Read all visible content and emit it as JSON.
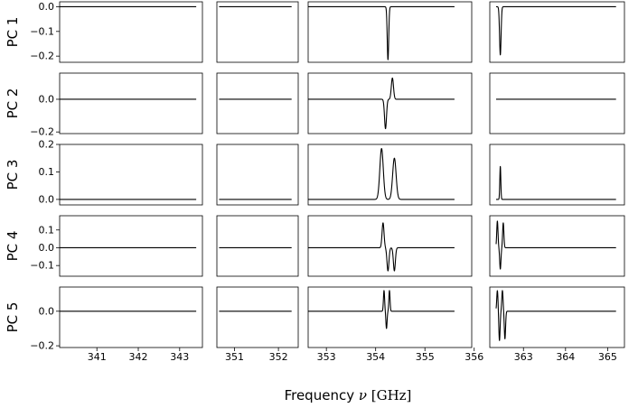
{
  "chart_data": {
    "type": "line",
    "xlabel": {
      "prefix": "Frequency ",
      "symbol": "ν",
      "unit": " [GHz]"
    },
    "color": "#000000",
    "panels": [
      {
        "label": "PC 1",
        "xticks": [
          "341",
          "342",
          "343"
        ],
        "xtick_values": [
          341,
          342,
          343
        ]
      },
      {
        "label": "",
        "xticks": [
          "351",
          "352"
        ],
        "xtick_values": [
          351,
          352
        ]
      },
      {
        "label": "",
        "xticks": [
          "353",
          "354",
          "355",
          "356"
        ],
        "xtick_values": [
          353,
          354,
          355,
          356
        ]
      },
      {
        "label": "",
        "xticks": [
          "363",
          "364",
          "365"
        ],
        "xtick_values": [
          363,
          364,
          365
        ]
      }
    ],
    "column_ranges": [
      {
        "xmin": 340.1,
        "xmax": 343.55,
        "line_from": 340.1,
        "line_to": 343.4
      },
      {
        "xmin": 350.6,
        "xmax": 352.45,
        "line_from": 350.65,
        "line_to": 352.3
      },
      {
        "xmin": 352.63,
        "xmax": 355.95,
        "line_from": 352.63,
        "line_to": 355.6
      },
      {
        "xmin": 362.2,
        "xmax": 365.4,
        "line_from": 362.35,
        "line_to": 365.2
      }
    ],
    "rows": [
      {
        "label": "PC 1",
        "ylim": [
          -0.225,
          0.02
        ],
        "yticks": [
          0.0,
          -0.1,
          -0.2
        ],
        "ytick_labels": [
          "0.0",
          "−0.1",
          "−0.2"
        ],
        "features": [
          [],
          [],
          [
            {
              "center": 354.25,
              "amp": -0.215,
              "width": 0.015
            }
          ],
          [
            {
              "center": 362.45,
              "amp": -0.195,
              "width": 0.018
            }
          ]
        ]
      },
      {
        "label": "PC 2",
        "ylim": [
          -0.21,
          0.16
        ],
        "yticks": [
          0.0,
          -0.2
        ],
        "ytick_labels": [
          "0.0",
          "−0.2"
        ],
        "features": [
          [],
          [],
          [
            {
              "center": 354.2,
              "amp": -0.18,
              "width": 0.02
            },
            {
              "center": 354.34,
              "amp": 0.13,
              "width": 0.022
            }
          ],
          []
        ]
      },
      {
        "label": "PC 3",
        "ylim": [
          -0.02,
          0.2
        ],
        "yticks": [
          0.2,
          0.1,
          0.0
        ],
        "ytick_labels": [
          "0.2",
          "0.1",
          "0.0"
        ],
        "features": [
          [],
          [],
          [
            {
              "center": 354.12,
              "amp": 0.185,
              "width": 0.035
            },
            {
              "center": 354.38,
              "amp": 0.15,
              "width": 0.035
            }
          ],
          [
            {
              "center": 362.45,
              "amp": 0.12,
              "width": 0.012
            }
          ]
        ]
      },
      {
        "label": "PC 4",
        "ylim": [
          -0.16,
          0.18
        ],
        "yticks": [
          0.1,
          0.0,
          -0.1
        ],
        "ytick_labels": [
          "0.1",
          "0.0",
          "−0.1"
        ],
        "features": [
          [],
          [],
          [
            {
              "center": 354.15,
              "amp": 0.14,
              "width": 0.02
            },
            {
              "center": 354.25,
              "amp": -0.13,
              "width": 0.02
            },
            {
              "center": 354.38,
              "amp": -0.13,
              "width": 0.02
            }
          ],
          [
            {
              "center": 362.38,
              "amp": 0.15,
              "width": 0.015
            },
            {
              "center": 362.45,
              "amp": -0.12,
              "width": 0.015
            },
            {
              "center": 362.52,
              "amp": 0.14,
              "width": 0.015
            }
          ]
        ]
      },
      {
        "label": "PC 5",
        "ylim": [
          -0.21,
          0.14
        ],
        "yticks": [
          0.0,
          -0.2
        ],
        "ytick_labels": [
          "0.0",
          "−0.2"
        ],
        "features": [
          [],
          [],
          [
            {
              "center": 354.17,
              "amp": 0.12,
              "width": 0.012
            },
            {
              "center": 354.22,
              "amp": -0.1,
              "width": 0.012
            },
            {
              "center": 354.28,
              "amp": 0.12,
              "width": 0.012
            }
          ],
          [
            {
              "center": 362.38,
              "amp": 0.12,
              "width": 0.015
            },
            {
              "center": 362.43,
              "amp": -0.17,
              "width": 0.015
            },
            {
              "center": 362.5,
              "amp": 0.12,
              "width": 0.015
            },
            {
              "center": 362.56,
              "amp": -0.16,
              "width": 0.015
            }
          ]
        ]
      }
    ]
  }
}
